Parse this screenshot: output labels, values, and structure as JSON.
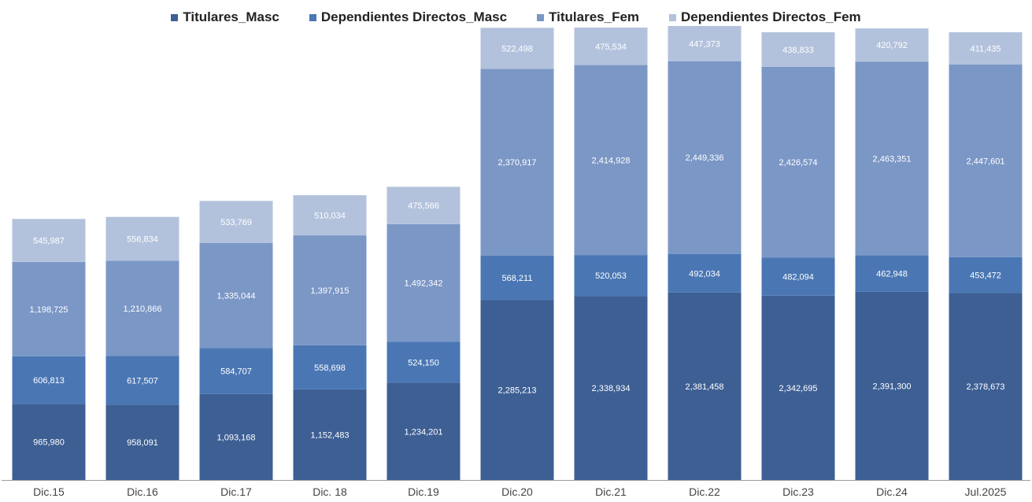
{
  "chart_data": {
    "type": "bar",
    "stacked": true,
    "categories": [
      "Dic.15",
      "Dic.16",
      "Dic.17",
      "Dic. 18",
      "Dic.19",
      "Dic.20",
      "Dic.21",
      "Dic.22",
      "Dic.23",
      "Dic.24",
      "Jul.2025"
    ],
    "series": [
      {
        "name": "Titulares_Masc",
        "color": "#3d5f94",
        "values": [
          965980,
          958091,
          1093168,
          1152483,
          1234201,
          2285213,
          2338934,
          2381458,
          2342695,
          2391300,
          2378673
        ],
        "labels": [
          "965,980",
          "958,091",
          "1,093,168",
          "1,152,483",
          "1,234,201",
          "2,285,213",
          "2,338,934",
          "2,381,458",
          "2,342,695",
          "2,391,300",
          "2,378,673"
        ]
      },
      {
        "name": "Dependientes Directos_Masc",
        "color": "#4a77b4",
        "values": [
          606813,
          617507,
          584707,
          558698,
          524150,
          568211,
          520053,
          492034,
          482094,
          462948,
          453472
        ],
        "labels": [
          "606,813",
          "617,507",
          "584,707",
          "558,698",
          "524,150",
          "568,211",
          "520,053",
          "492,034",
          "482,094",
          "462,948",
          "453,472"
        ]
      },
      {
        "name": "Titulares_Fem",
        "color": "#7b97c6",
        "values": [
          1198725,
          1210866,
          1335044,
          1397915,
          1492342,
          2370917,
          2414928,
          2449336,
          2426574,
          2463351,
          2447601
        ],
        "labels": [
          "1,198,725",
          "1,210,866",
          "1,335,044",
          "1,397,915",
          "1,492,342",
          "2,370,917",
          "2,414,928",
          "2,449,336",
          "2,426,574",
          "2,463,351",
          "2,447,601"
        ]
      },
      {
        "name": "Dependientes Directos_Fem",
        "color": "#b3c2dc",
        "values": [
          545987,
          556834,
          533769,
          510034,
          475566,
          522498,
          475534,
          447373,
          438833,
          420792,
          411435
        ],
        "labels": [
          "545,987",
          "556,834",
          "533,769",
          "510,034",
          "475,566",
          "522,498",
          "475,534",
          "447,373",
          "438,833",
          "420,792",
          "411,435"
        ]
      }
    ],
    "title": "",
    "xlabel": "",
    "ylabel": "",
    "ylim": [
      0,
      5800000
    ],
    "grid": false,
    "legend_position": "top"
  }
}
